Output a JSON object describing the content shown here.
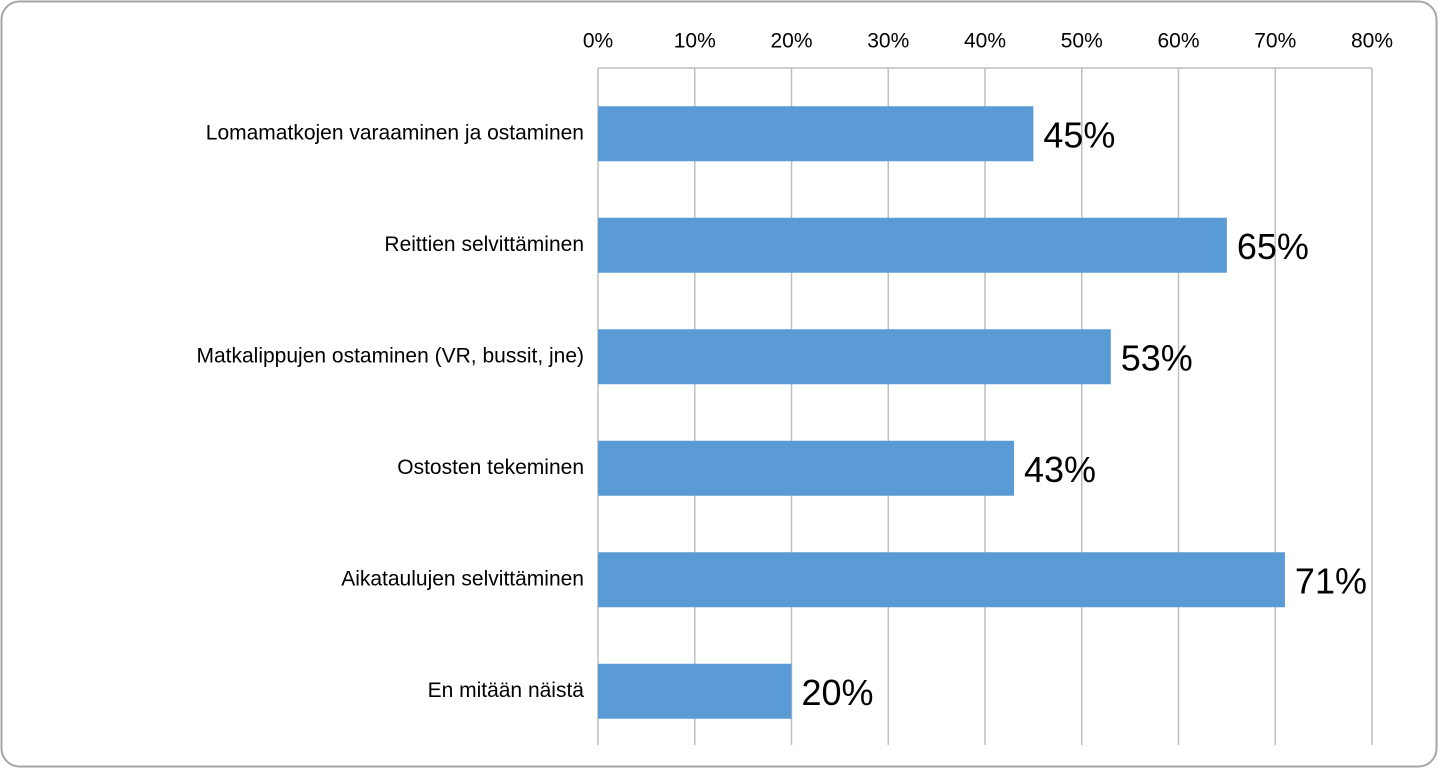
{
  "chart_data": {
    "type": "bar",
    "orientation": "horizontal",
    "categories": [
      "Lomamatkojen varaaminen ja ostaminen",
      "Reittien selvittäminen",
      "Matkalippujen ostaminen (VR, bussit, jne)",
      "Ostosten tekeminen",
      "Aikataulujen selvittäminen",
      "En mitään näistä"
    ],
    "values": [
      45,
      65,
      53,
      43,
      71,
      20
    ],
    "value_labels": [
      "45%",
      "65%",
      "53%",
      "43%",
      "71%",
      "20%"
    ],
    "color": "#5b9bd5",
    "xlim": [
      0,
      80
    ],
    "xticks": [
      {
        "value": 0,
        "label": "0%"
      },
      {
        "value": 10,
        "label": "10%"
      },
      {
        "value": 20,
        "label": "20%"
      },
      {
        "value": 30,
        "label": "30%"
      },
      {
        "value": 40,
        "label": "40%"
      },
      {
        "value": 50,
        "label": "50%"
      },
      {
        "value": 60,
        "label": "60%"
      },
      {
        "value": 70,
        "label": "70%"
      },
      {
        "value": 80,
        "label": "80%"
      }
    ],
    "grid": true
  }
}
